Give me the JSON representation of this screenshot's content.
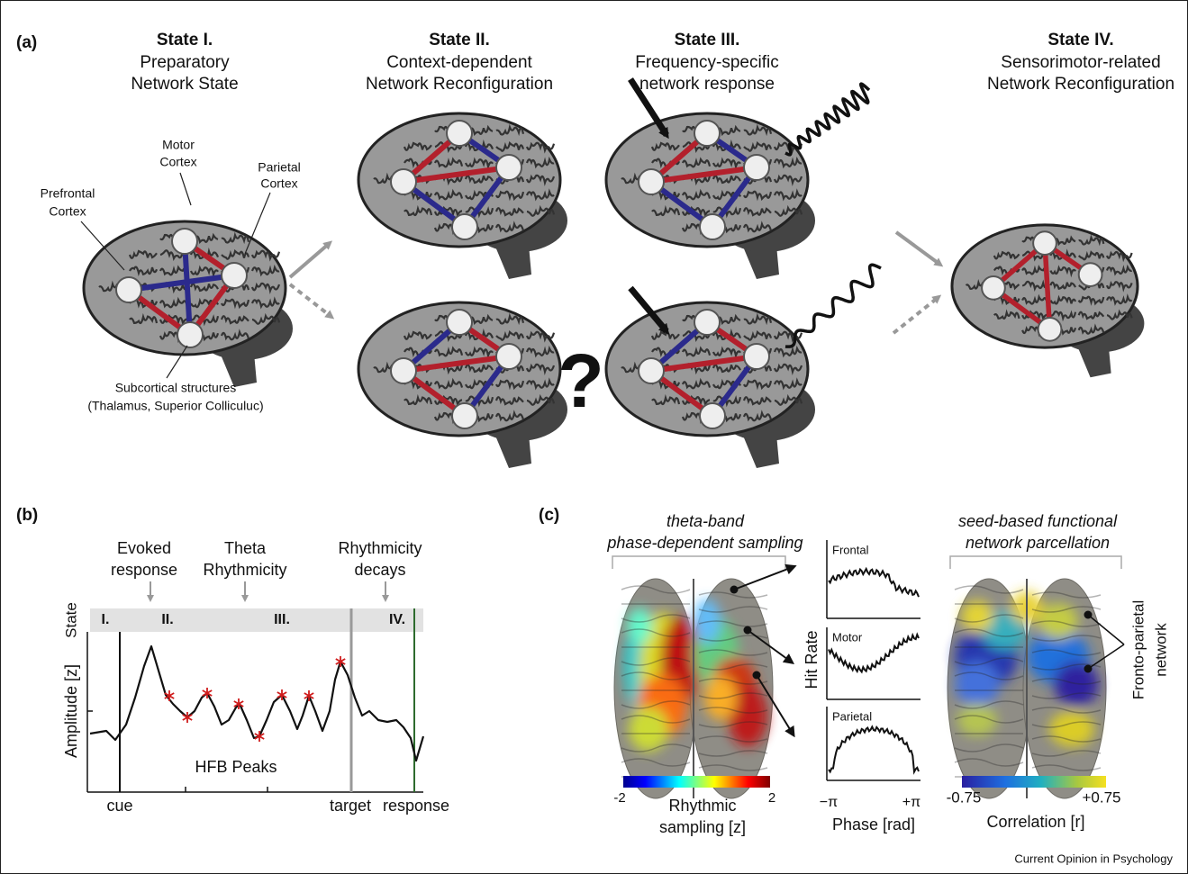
{
  "panel_a": {
    "label": "(a)",
    "states": [
      {
        "title": "State I.",
        "lines": [
          "Preparatory",
          "Network State"
        ]
      },
      {
        "title": "State II.",
        "lines": [
          "Context-dependent",
          "Network Reconfiguration"
        ]
      },
      {
        "title": "State III.",
        "lines": [
          "Frequency-specific",
          "network response"
        ]
      },
      {
        "title": "State IV.",
        "lines": [
          "Sensorimotor-related",
          "Network Reconfiguration"
        ]
      }
    ],
    "regions": {
      "motor": [
        "Motor",
        "Cortex"
      ],
      "parietal": [
        "Parietal",
        "Cortex"
      ],
      "prefrontal": [
        "Prefrontal",
        "Cortex"
      ],
      "subcortical": [
        "Subcortical structures",
        "(Thalamus, Superior Colliculuc)"
      ]
    },
    "question": "?"
  },
  "panel_b": {
    "label": "(b)",
    "phases": [
      [
        "Evoked",
        "response"
      ],
      [
        "Theta",
        "Rhythmicity"
      ],
      [
        "Rhythmicity",
        "decays"
      ]
    ],
    "states": [
      "I.",
      "II.",
      "III.",
      "IV."
    ],
    "state_axis": "State",
    "y_axis": "Amplitude [z]",
    "peaks_label": "HFB Peaks",
    "events": [
      "cue",
      "target",
      "response"
    ]
  },
  "panel_c": {
    "label": "(c)",
    "left_title": [
      "theta-band",
      "phase-dependent sampling"
    ],
    "left_colorbar": {
      "min": "-2",
      "max": "2",
      "label": [
        "Rhythmic",
        "sampling [z]"
      ]
    },
    "plots": [
      "Frontal",
      "Motor",
      "Parietal"
    ],
    "plot_y": "Hit Rate",
    "plot_x_min": "−π",
    "plot_x_max": "+π",
    "plot_x": "Phase [rad]",
    "right_title": [
      "seed-based functional",
      "network parcellation"
    ],
    "right_colorbar": {
      "min": "-0.75",
      "max": "+0.75",
      "label": "Correlation [r]"
    },
    "network_label": [
      "Fronto-parietal",
      "network"
    ]
  },
  "footer": "Current Opinion in Psychology"
}
